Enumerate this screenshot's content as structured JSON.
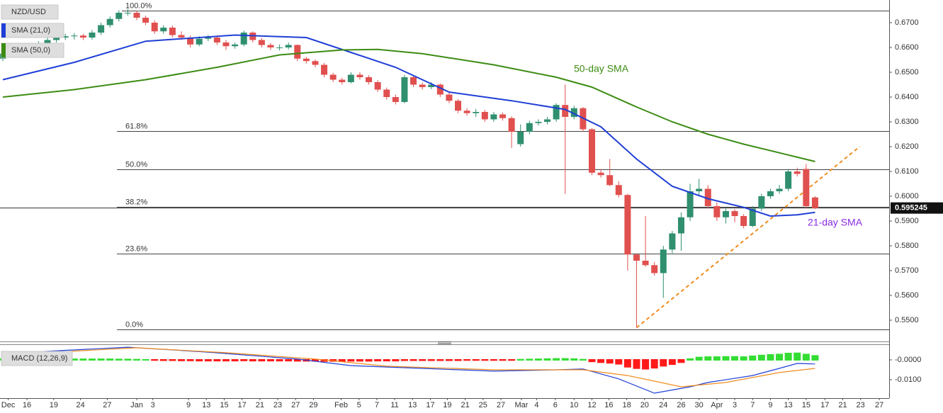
{
  "chart_data": [
    {
      "type": "candlestick",
      "title": "NZD/USD",
      "xlim": [
        -0.32,
        99.3
      ],
      "ylim": [
        0.54257,
        0.67914
      ],
      "yticks": [
        {
          "value": 0.55,
          "label": "0.5500"
        },
        {
          "value": 0.56,
          "label": "0.5600"
        },
        {
          "value": 0.57,
          "label": "0.5700"
        },
        {
          "value": 0.58,
          "label": "0.5800"
        },
        {
          "value": 0.59,
          "label": "0.5900"
        },
        {
          "value": 0.6,
          "label": "0.6000"
        },
        {
          "value": 0.61,
          "label": "0.6100"
        },
        {
          "value": 0.62,
          "label": "0.6200"
        },
        {
          "value": 0.63,
          "label": "0.6300"
        },
        {
          "value": 0.64,
          "label": "0.6400"
        },
        {
          "value": 0.65,
          "label": "0.6500"
        },
        {
          "value": 0.66,
          "label": "0.6600"
        },
        {
          "value": 0.67,
          "label": "0.6700"
        }
      ],
      "up_color": "#2f8f6f",
      "down_color": "#e0504f",
      "candles": [
        [
          0.6555,
          0.6595,
          0.6545,
          0.6575
        ],
        [
          0.6575,
          0.66,
          0.6565,
          0.659
        ],
        [
          0.659,
          0.6608,
          0.658,
          0.6598
        ],
        [
          0.6598,
          0.6612,
          0.6588,
          0.66
        ],
        [
          0.66,
          0.6625,
          0.659,
          0.6615
        ],
        [
          0.6615,
          0.664,
          0.6605,
          0.663
        ],
        [
          0.663,
          0.665,
          0.662,
          0.664
        ],
        [
          0.664,
          0.6655,
          0.663,
          0.6645
        ],
        [
          0.6645,
          0.6658,
          0.6632,
          0.6648
        ],
        [
          0.6648,
          0.6655,
          0.663,
          0.664
        ],
        [
          0.664,
          0.667,
          0.6632,
          0.666
        ],
        [
          0.666,
          0.67,
          0.665,
          0.669
        ],
        [
          0.669,
          0.6725,
          0.668,
          0.6715
        ],
        [
          0.6715,
          0.675,
          0.6705,
          0.674
        ],
        [
          0.674,
          0.6755,
          0.6728,
          0.674
        ],
        [
          0.674,
          0.6748,
          0.671,
          0.672
        ],
        [
          0.672,
          0.6728,
          0.669,
          0.67
        ],
        [
          0.67,
          0.671,
          0.6655,
          0.6665
        ],
        [
          0.6665,
          0.669,
          0.6655,
          0.668
        ],
        [
          0.668,
          0.6688,
          0.664,
          0.665
        ],
        [
          0.665,
          0.6665,
          0.663,
          0.664
        ],
        [
          0.664,
          0.6648,
          0.66,
          0.6612
        ],
        [
          0.6612,
          0.6645,
          0.6605,
          0.6635
        ],
        [
          0.6635,
          0.665,
          0.6625,
          0.664
        ],
        [
          0.664,
          0.6648,
          0.661,
          0.662
        ],
        [
          0.662,
          0.663,
          0.659,
          0.6605
        ],
        [
          0.6605,
          0.662,
          0.6595,
          0.6612
        ],
        [
          0.6612,
          0.6668,
          0.6605,
          0.666
        ],
        [
          0.666,
          0.6665,
          0.662,
          0.663
        ],
        [
          0.663,
          0.6638,
          0.66,
          0.661
        ],
        [
          0.661,
          0.6618,
          0.659,
          0.66
        ],
        [
          0.66,
          0.6612,
          0.6588,
          0.66
        ],
        [
          0.66,
          0.662,
          0.6592,
          0.661
        ],
        [
          0.661,
          0.6612,
          0.6545,
          0.6555
        ],
        [
          0.6555,
          0.6562,
          0.6535,
          0.6545
        ],
        [
          0.6545,
          0.6552,
          0.652,
          0.653
        ],
        [
          0.653,
          0.6538,
          0.648,
          0.649
        ],
        [
          0.649,
          0.6498,
          0.646,
          0.647
        ],
        [
          0.647,
          0.6478,
          0.645,
          0.646
        ],
        [
          0.646,
          0.65,
          0.6455,
          0.649
        ],
        [
          0.649,
          0.65,
          0.647,
          0.648
        ],
        [
          0.648,
          0.6488,
          0.645,
          0.646
        ],
        [
          0.646,
          0.6468,
          0.642,
          0.643
        ],
        [
          0.643,
          0.6438,
          0.639,
          0.64
        ],
        [
          0.64,
          0.641,
          0.637,
          0.638
        ],
        [
          0.638,
          0.649,
          0.6375,
          0.648
        ],
        [
          0.648,
          0.6488,
          0.644,
          0.645
        ],
        [
          0.645,
          0.6458,
          0.643,
          0.644
        ],
        [
          0.644,
          0.646,
          0.6432,
          0.645
        ],
        [
          0.645,
          0.6455,
          0.64,
          0.641
        ],
        [
          0.641,
          0.6418,
          0.6375,
          0.6385
        ],
        [
          0.6385,
          0.6392,
          0.6335,
          0.6345
        ],
        [
          0.6345,
          0.6355,
          0.6325,
          0.6335
        ],
        [
          0.6335,
          0.6352,
          0.632,
          0.634
        ],
        [
          0.634,
          0.6348,
          0.63,
          0.631
        ],
        [
          0.631,
          0.634,
          0.63,
          0.633
        ],
        [
          0.633,
          0.6338,
          0.6305,
          0.6315
        ],
        [
          0.6315,
          0.6322,
          0.6195,
          0.626
        ],
        [
          0.621,
          0.629,
          0.62,
          0.626
        ],
        [
          0.626,
          0.6305,
          0.625,
          0.6295
        ],
        [
          0.6295,
          0.631,
          0.6285,
          0.63
        ],
        [
          0.63,
          0.632,
          0.629,
          0.631
        ],
        [
          0.631,
          0.6375,
          0.63,
          0.6368
        ],
        [
          0.6368,
          0.645,
          0.601,
          0.632
        ],
        [
          0.632,
          0.6365,
          0.631,
          0.6355
        ],
        [
          0.6355,
          0.636,
          0.626,
          0.627
        ],
        [
          0.627,
          0.6275,
          0.6085,
          0.6095
        ],
        [
          0.6095,
          0.611,
          0.6075,
          0.6085
        ],
        [
          0.6085,
          0.615,
          0.604,
          0.6045
        ],
        [
          0.6045,
          0.606,
          0.5995,
          0.6005
        ],
        [
          0.6005,
          0.601,
          0.57,
          0.5765
        ],
        [
          0.5765,
          0.577,
          0.547,
          0.574
        ],
        [
          0.574,
          0.592,
          0.5715,
          0.5722
        ],
        [
          0.5722,
          0.5735,
          0.568,
          0.569
        ],
        [
          0.569,
          0.58,
          0.559,
          0.5785
        ],
        [
          0.5785,
          0.586,
          0.577,
          0.585
        ],
        [
          0.585,
          0.5935,
          0.578,
          0.5915
        ],
        [
          0.5915,
          0.605,
          0.59,
          0.602
        ],
        [
          0.602,
          0.607,
          0.6,
          0.603
        ],
        [
          0.603,
          0.6045,
          0.595,
          0.596
        ],
        [
          0.596,
          0.5975,
          0.59,
          0.5915
        ],
        [
          0.5915,
          0.595,
          0.589,
          0.594
        ],
        [
          0.594,
          0.5948,
          0.5895,
          0.592
        ],
        [
          0.592,
          0.5928,
          0.587,
          0.588
        ],
        [
          0.588,
          0.596,
          0.5875,
          0.595
        ],
        [
          0.595,
          0.601,
          0.594,
          0.6
        ],
        [
          0.6,
          0.603,
          0.599,
          0.602
        ],
        [
          0.602,
          0.6045,
          0.601,
          0.603
        ],
        [
          0.603,
          0.611,
          0.602,
          0.61
        ],
        [
          0.61,
          0.6115,
          0.608,
          0.609
        ],
        [
          0.611,
          0.613,
          0.595,
          0.596
        ],
        [
          0.5995,
          0.6,
          0.5948,
          0.5952
        ]
      ],
      "lines": [
        {
          "name": "SMA (21,0)",
          "color": "#1f3fd6",
          "x": [
            0,
            8,
            16,
            26,
            34,
            39,
            44,
            50,
            57,
            63,
            67,
            71,
            75,
            79,
            83,
            86,
            89,
            91
          ],
          "values": [
            0.647,
            0.654,
            0.6625,
            0.665,
            0.664,
            0.658,
            0.652,
            0.642,
            0.6385,
            0.635,
            0.628,
            0.615,
            0.604,
            0.599,
            0.5955,
            0.592,
            0.5925,
            0.5935
          ]
        },
        {
          "name": "SMA (50,0)",
          "color": "#3c8c13",
          "x": [
            0,
            8,
            16,
            24,
            31,
            38,
            42,
            47,
            55,
            62,
            66,
            71,
            75,
            79,
            83,
            87,
            91
          ],
          "values": [
            0.64,
            0.643,
            0.647,
            0.652,
            0.657,
            0.659,
            0.6592,
            0.6575,
            0.653,
            0.648,
            0.644,
            0.636,
            0.63,
            0.625,
            0.621,
            0.6175,
            0.614
          ]
        }
      ],
      "levels": [
        {
          "label": "100.0%",
          "value": 0.6749
        },
        {
          "label": "61.8%",
          "value": 0.6263
        },
        {
          "label": "50.0%",
          "value": 0.6109
        },
        {
          "label": "38.2%",
          "value": 0.5957
        },
        {
          "label": "23.6%",
          "value": 0.5769
        },
        {
          "label": "0.0%",
          "value": 0.5463
        }
      ],
      "trendline": {
        "color": "#f08c1e",
        "x": [
          71,
          96
        ],
        "values": [
          0.547,
          0.62
        ]
      },
      "last_price": 0.595245,
      "annotations": [
        {
          "text": "50-day SMA",
          "color": "#3c8c13"
        },
        {
          "text": "21-day SMA",
          "color": "#8a2be2"
        }
      ]
    },
    {
      "type": "macd",
      "title": "MACD (12,26,9)",
      "xlim": [
        -0.32,
        99.3
      ],
      "ylim": [
        -0.0186,
        0.00714
      ],
      "yticks": [
        {
          "value": 0,
          "label": "-0.0000"
        },
        {
          "value": -0.01,
          "label": "-0.0100"
        }
      ],
      "xticks": [
        {
          "value": 0.6,
          "label": "Dec"
        },
        {
          "value": 2.7,
          "label": "16"
        },
        {
          "value": 5.7,
          "label": "19"
        },
        {
          "value": 8.7,
          "label": "24"
        },
        {
          "value": 11.7,
          "label": "27"
        },
        {
          "value": 15,
          "label": "Jan"
        },
        {
          "value": 16.8,
          "label": "3"
        },
        {
          "value": 20.8,
          "label": "9"
        },
        {
          "value": 22.8,
          "label": "13"
        },
        {
          "value": 24.8,
          "label": "15"
        },
        {
          "value": 26.8,
          "label": "17"
        },
        {
          "value": 28.8,
          "label": "21"
        },
        {
          "value": 30.8,
          "label": "23"
        },
        {
          "value": 32.8,
          "label": "27"
        },
        {
          "value": 34.8,
          "label": "29"
        },
        {
          "value": 37.9,
          "label": "Feb"
        },
        {
          "value": 39.9,
          "label": "5"
        },
        {
          "value": 41.9,
          "label": "7"
        },
        {
          "value": 43.9,
          "label": "11"
        },
        {
          "value": 45.9,
          "label": "13"
        },
        {
          "value": 47.9,
          "label": "17"
        },
        {
          "value": 49.8,
          "label": "19"
        },
        {
          "value": 51.8,
          "label": "21"
        },
        {
          "value": 53.8,
          "label": "25"
        },
        {
          "value": 55.8,
          "label": "27"
        },
        {
          "value": 58.1,
          "label": "Mar"
        },
        {
          "value": 59.8,
          "label": "4"
        },
        {
          "value": 61.9,
          "label": "6"
        },
        {
          "value": 64,
          "label": "10"
        },
        {
          "value": 66,
          "label": "12"
        },
        {
          "value": 67.9,
          "label": "16"
        },
        {
          "value": 69.9,
          "label": "18"
        },
        {
          "value": 71.9,
          "label": "20"
        },
        {
          "value": 74,
          "label": "24"
        },
        {
          "value": 76,
          "label": "26"
        },
        {
          "value": 78,
          "label": "30"
        },
        {
          "value": 80,
          "label": "Apr"
        },
        {
          "value": 82,
          "label": "3"
        },
        {
          "value": 84,
          "label": "7"
        },
        {
          "value": 86,
          "label": "9"
        },
        {
          "value": 88,
          "label": "13"
        },
        {
          "value": 90,
          "label": "15"
        },
        {
          "value": 92.1,
          "label": "17"
        },
        {
          "value": 94.1,
          "label": "21"
        },
        {
          "value": 96.1,
          "label": "23"
        },
        {
          "value": 98.2,
          "label": "27"
        }
      ],
      "histogram": {
        "up_color": "#33dd33",
        "down_color": "#ff1a1a",
        "values": [
          0.0004,
          0.0004,
          0.0004,
          0.0004,
          0.0003,
          0.0003,
          0.0003,
          0.0003,
          0.0003,
          0.0003,
          0.0003,
          0.0003,
          0.0003,
          0.0002,
          0.0002,
          0.0001,
          0,
          -0.0001,
          -0.0002,
          -0.0002,
          -0.0003,
          -0.0003,
          -0.0004,
          -0.0004,
          -0.0004,
          -0.0004,
          -0.0004,
          -0.0003,
          -0.0004,
          -0.0004,
          -0.0004,
          -0.0004,
          -0.0004,
          -0.0005,
          -0.0005,
          -0.0005,
          -0.0006,
          -0.0006,
          -0.0006,
          -0.0005,
          -0.0005,
          -0.0005,
          -0.0004,
          -0.0004,
          -0.0004,
          -0.0002,
          -0.0002,
          -0.0002,
          -0.0002,
          -0.0002,
          -0.0002,
          -0.0002,
          -0.0001,
          -0.0001,
          -0.0001,
          -0.0001,
          -0.0001,
          -0.0001,
          0.0001,
          0.0002,
          0.0003,
          0.0004,
          0.0005,
          0.0005,
          0.0004,
          0.0001,
          -0.0008,
          -0.0012,
          -0.0015,
          -0.002,
          -0.0035,
          -0.0042,
          -0.0045,
          -0.004,
          -0.003,
          -0.0022,
          -0.0012,
          0.0004,
          0.0012,
          0.0014,
          0.0014,
          0.0015,
          0.0015,
          0.0014,
          0.0018,
          0.0022,
          0.0025,
          0.0027,
          0.0032,
          0.0033,
          0.0027,
          0.002
        ]
      },
      "lines": [
        {
          "color": "#1f3fd6",
          "x": [
            0,
            14,
            23,
            33,
            39,
            47,
            55,
            62,
            65,
            69,
            73,
            77,
            79,
            84,
            87,
            89,
            91
          ],
          "values": [
            0.0032,
            0.0064,
            0.0039,
            0.0004,
            -0.0029,
            -0.0043,
            -0.0057,
            -0.005,
            -0.0046,
            -0.0096,
            -0.0168,
            -0.0136,
            -0.0114,
            -0.0079,
            -0.0043,
            -0.0018,
            -0.0021
          ]
        },
        {
          "color": "#f08c1e",
          "x": [
            0,
            15,
            25,
            35,
            43,
            55,
            65,
            70,
            76,
            81,
            87,
            91
          ],
          "values": [
            0.0025,
            0.0061,
            0.0036,
            0.0004,
            -0.0032,
            -0.005,
            -0.005,
            -0.0079,
            -0.0136,
            -0.0114,
            -0.0064,
            -0.0043
          ]
        }
      ]
    }
  ]
}
